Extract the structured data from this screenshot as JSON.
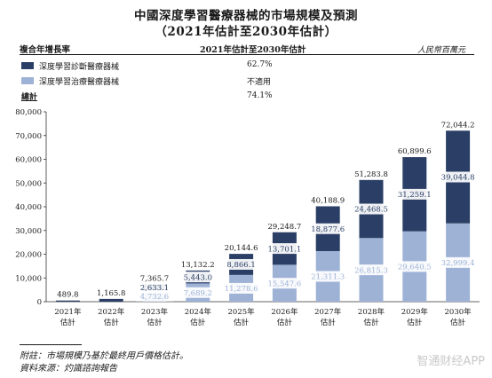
{
  "title_line1": "中國深度學習醫療器械的市場規模及預測",
  "title_line2": "（2021年估計至2030年估計）",
  "table": {
    "col1_header": "複合年增長率",
    "col2_header": "2021年估計至2030年估計",
    "unit": "人民幣百萬元",
    "rows": [
      {
        "label": "深度學習診斷醫療器械",
        "value": "62.7%",
        "color": "#2b3f66"
      },
      {
        "label": "深度學習治療醫療器械",
        "value": "不適用",
        "color": "#9eb2d6"
      }
    ],
    "total_label": "總計",
    "total_value": "74.1%"
  },
  "footnote1": "附註：市場規模乃基於最終用戶價格估計。",
  "footnote2": "資料來源：灼識諮詢報告",
  "watermark": "智通财经APP",
  "chart_data": {
    "type": "bar",
    "stacked": true,
    "categories": [
      "2021年估計",
      "2022年估計",
      "2023年估計",
      "2024年估計",
      "2025年估計",
      "2026年估計",
      "2027年估計",
      "2028年估計",
      "2029年估計",
      "2030年估計"
    ],
    "series": [
      {
        "name": "深度學習治療醫療器械",
        "color": "#9eb2d6",
        "values": [
          0,
          0,
          4732.6,
          7689.2,
          11278.6,
          15547.6,
          21311.3,
          26815.3,
          29640.5,
          32999.4
        ],
        "labels": [
          "",
          "",
          "4,732.6",
          "7,689.2",
          "11,278.6",
          "15,547.6",
          "21,311.3",
          "26,815.3",
          "29,640.5",
          "32,999.4"
        ]
      },
      {
        "name": "深度學習診斷醫療器械",
        "color": "#2b3f66",
        "values": [
          489.8,
          1165.8,
          2633.1,
          5443.0,
          8866.1,
          13701.1,
          18877.6,
          24468.5,
          31259.1,
          39044.8
        ],
        "labels": [
          "",
          "",
          "2,633.1",
          "5,443.0",
          "8,866.1",
          "13,701.1",
          "18,877.6",
          "24,468.5",
          "31,259.1",
          "39,044.8"
        ]
      }
    ],
    "totals": [
      "489.8",
      "1,165.8",
      "7,365.7",
      "13,132.2",
      "20,144.6",
      "29,248.7",
      "40,188.9",
      "51,283.8",
      "60,899.6",
      "72,044.2"
    ],
    "total_values": [
      489.8,
      1165.8,
      7365.7,
      13132.2,
      20144.6,
      29248.7,
      40188.9,
      51283.8,
      60899.6,
      72044.2
    ],
    "ylim": [
      0,
      80000
    ],
    "yticks": [
      "0",
      "10,000",
      "20,000",
      "30,000",
      "40,000",
      "50,000",
      "60,000",
      "70,000",
      "80,000"
    ],
    "ytick_values": [
      0,
      10000,
      20000,
      30000,
      40000,
      50000,
      60000,
      70000,
      80000
    ],
    "grid": false
  }
}
